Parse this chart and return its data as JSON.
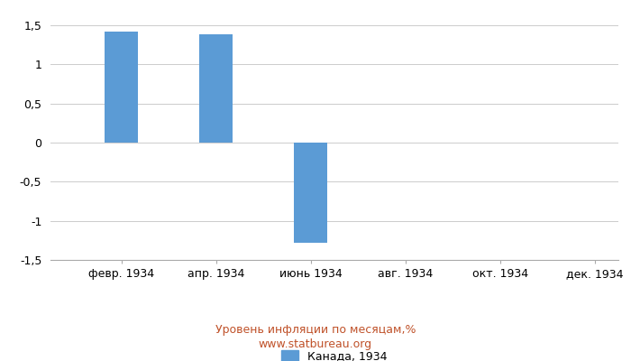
{
  "months": [
    1,
    2,
    3,
    4,
    5,
    6,
    7,
    8,
    9,
    10,
    11,
    12
  ],
  "values": [
    null,
    1.42,
    null,
    1.39,
    null,
    -1.28,
    null,
    null,
    null,
    null,
    null,
    null
  ],
  "xtick_positions": [
    2,
    4,
    6,
    8,
    10,
    12
  ],
  "xtick_labels": [
    "февр. 1934",
    "апр. 1934",
    "июнь 1934",
    "авг. 1934",
    "окт. 1934",
    "дек. 1934"
  ],
  "ylim": [
    -1.5,
    1.5
  ],
  "yticks": [
    -1.5,
    -1.0,
    -0.5,
    0.0,
    0.5,
    1.0,
    1.5
  ],
  "ytick_labels": [
    "-1,5",
    "-1",
    "-0,5",
    "0",
    "0,5",
    "1",
    "1,5"
  ],
  "bar_color": "#5B9BD5",
  "bar_width": 0.7,
  "legend_label": "Канада, 1934",
  "subtitle": "Уровень инфляции по месяцам,%",
  "watermark": "www.statbureau.org",
  "background_color": "#ffffff",
  "grid_color": "#cccccc",
  "axis_fontsize": 9,
  "subtitle_color": "#c0522a",
  "watermark_color": "#c0522a"
}
